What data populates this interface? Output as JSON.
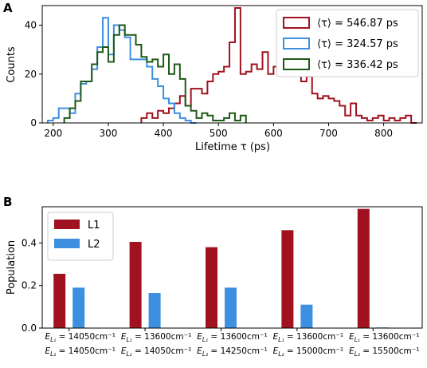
{
  "panels": [
    {
      "letter": "A"
    },
    {
      "letter": "B"
    }
  ],
  "chart_data": [
    {
      "type": "line",
      "subtype": "step-histogram",
      "title": "",
      "xlabel": "Lifetime τ (ps)",
      "ylabel": "Counts",
      "xlim": [
        180,
        870
      ],
      "ylim": [
        0,
        48
      ],
      "xticks": [
        "200",
        "300",
        "400",
        "500",
        "600",
        "700",
        "800"
      ],
      "yticks": [
        "0",
        "20",
        "40"
      ],
      "grid": false,
      "legend_position": "top-right",
      "bin_width": 10,
      "series": [
        {
          "name": "⟨τ⟩ = 546.87 ps",
          "color": "#a0121f",
          "bin_starts": [
            360,
            370,
            380,
            390,
            400,
            410,
            420,
            430,
            440,
            450,
            460,
            470,
            480,
            490,
            500,
            510,
            520,
            530,
            540,
            550,
            560,
            570,
            580,
            590,
            600,
            610,
            620,
            630,
            640,
            650,
            660,
            670,
            680,
            690,
            700,
            710,
            720,
            730,
            740,
            750,
            760,
            770,
            780,
            790,
            800,
            810,
            820,
            830,
            840,
            850
          ],
          "counts": [
            2,
            4,
            2,
            5,
            4,
            6,
            8,
            11,
            7,
            14,
            14,
            12,
            17,
            20,
            21,
            23,
            33,
            47,
            20,
            21,
            24,
            22,
            29,
            20,
            23,
            25,
            20,
            24,
            23,
            17,
            19,
            12,
            10,
            11,
            10,
            9,
            7,
            3,
            8,
            3,
            2,
            1,
            2,
            3,
            1,
            2,
            1,
            2,
            3,
            0
          ]
        },
        {
          "name": "⟨τ⟩ = 324.57 ps",
          "color": "#3d8fe0",
          "bin_starts": [
            190,
            200,
            210,
            220,
            230,
            240,
            250,
            260,
            270,
            280,
            290,
            300,
            310,
            320,
            330,
            340,
            350,
            360,
            370,
            380,
            390,
            400,
            410,
            420,
            430,
            440,
            450
          ],
          "counts": [
            1,
            2,
            6,
            6,
            4,
            12,
            16,
            17,
            22,
            31,
            43,
            28,
            40,
            38,
            35,
            26,
            26,
            26,
            23,
            18,
            15,
            10,
            8,
            4,
            2,
            1,
            0
          ]
        },
        {
          "name": "⟨τ⟩ = 336.42 ps",
          "color": "#1e5a17",
          "bin_starts": [
            220,
            230,
            240,
            250,
            260,
            270,
            280,
            290,
            300,
            310,
            320,
            330,
            340,
            350,
            360,
            370,
            380,
            390,
            400,
            410,
            420,
            430,
            440,
            450,
            460,
            470,
            480,
            490,
            500,
            510,
            520,
            530,
            540
          ],
          "counts": [
            2,
            6,
            9,
            17,
            17,
            24,
            29,
            31,
            25,
            36,
            40,
            36,
            36,
            32,
            27,
            25,
            26,
            23,
            28,
            20,
            24,
            18,
            7,
            5,
            2,
            4,
            3,
            1,
            1,
            2,
            4,
            1,
            3
          ]
        }
      ]
    },
    {
      "type": "bar",
      "title": "",
      "xlabel": "",
      "ylabel": "Population",
      "ylim": [
        0,
        0.57
      ],
      "yticks": [
        "0.0",
        "0.2",
        "0.4"
      ],
      "grid": false,
      "legend_position": "top-left",
      "categories": [
        {
          "l1_pre": "E",
          "l1_sub": "L₁",
          "l1_val": " = 14050cm⁻¹",
          "l2_pre": "E",
          "l2_sub": "L₂",
          "l2_val": " = 14050cm⁻¹"
        },
        {
          "l1_pre": "E",
          "l1_sub": "L₁",
          "l1_val": " = 13600cm⁻¹",
          "l2_pre": "E",
          "l2_sub": "L₂",
          "l2_val": " = 14050cm⁻¹"
        },
        {
          "l1_pre": "E",
          "l1_sub": "L₁",
          "l1_val": " = 13600cm⁻¹",
          "l2_pre": "E",
          "l2_sub": "L₂",
          "l2_val": " = 14250cm⁻¹"
        },
        {
          "l1_pre": "E",
          "l1_sub": "L₁",
          "l1_val": " = 13600cm⁻¹",
          "l2_pre": "E",
          "l2_sub": "L₂",
          "l2_val": " = 15000cm⁻¹"
        },
        {
          "l1_pre": "E",
          "l1_sub": "L₁",
          "l1_val": " = 13600cm⁻¹",
          "l2_pre": "E",
          "l2_sub": "L₂",
          "l2_val": " = 15500cm⁻¹"
        }
      ],
      "series": [
        {
          "name": "L1",
          "color": "#a0121f",
          "values": [
            0.255,
            0.405,
            0.38,
            0.46,
            0.56
          ]
        },
        {
          "name": "L2",
          "color": "#3d8fe0",
          "values": [
            0.19,
            0.165,
            0.19,
            0.11,
            0.003
          ]
        }
      ]
    }
  ]
}
